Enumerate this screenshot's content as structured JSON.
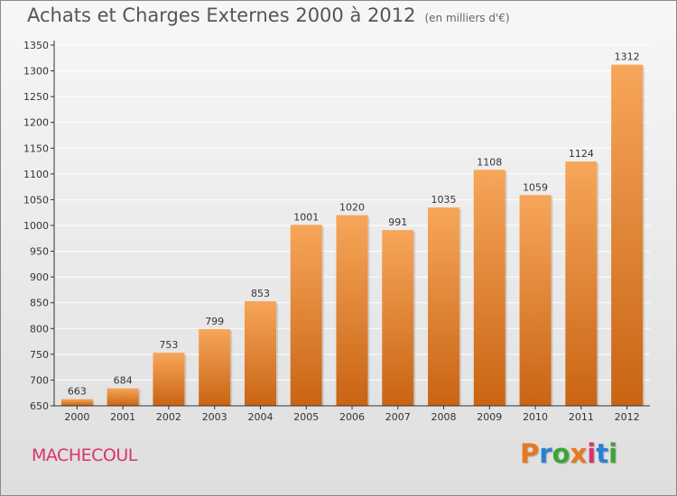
{
  "header": {
    "title": "Achats et Charges Externes 2000 à 2012",
    "unit": "(en milliers d'€)"
  },
  "footer": {
    "commune": "MACHECOUL",
    "brand_letters": [
      "P",
      "r",
      "o",
      "x",
      "i",
      "t",
      "i"
    ],
    "brand_colors": [
      "#e8781e",
      "#2a7fd4",
      "#3aa535",
      "#e8781e",
      "#d8336b",
      "#2a7fd4",
      "#3aa535"
    ]
  },
  "colors": {
    "bar_top": "#f7a65a",
    "bar_bottom": "#c96413",
    "axis": "#333333",
    "grid": "#ffffff",
    "text": "#333333",
    "commune": "#d8336b"
  },
  "chart_data": {
    "type": "bar",
    "title": "Achats et Charges Externes 2000 à 2012",
    "categories": [
      "2000",
      "2001",
      "2002",
      "2003",
      "2004",
      "2005",
      "2006",
      "2007",
      "2008",
      "2009",
      "2010",
      "2011",
      "2012"
    ],
    "values": [
      663,
      684,
      753,
      799,
      853,
      1001,
      1020,
      991,
      1035,
      1108,
      1059,
      1124,
      1312
    ],
    "value_labels": [
      "663",
      "684",
      "753",
      "799",
      "853",
      "1001",
      "1020",
      "991",
      "1035",
      "1108",
      "1059",
      "1124",
      "1312"
    ],
    "yticks": [
      "650",
      "700",
      "750",
      "800",
      "850",
      "900",
      "950",
      "1000",
      "1050",
      "1100",
      "1150",
      "1200",
      "1250",
      "1300",
      "1350"
    ],
    "ylim": [
      650,
      1350
    ],
    "grid": true,
    "xlabel": "",
    "ylabel": ""
  }
}
